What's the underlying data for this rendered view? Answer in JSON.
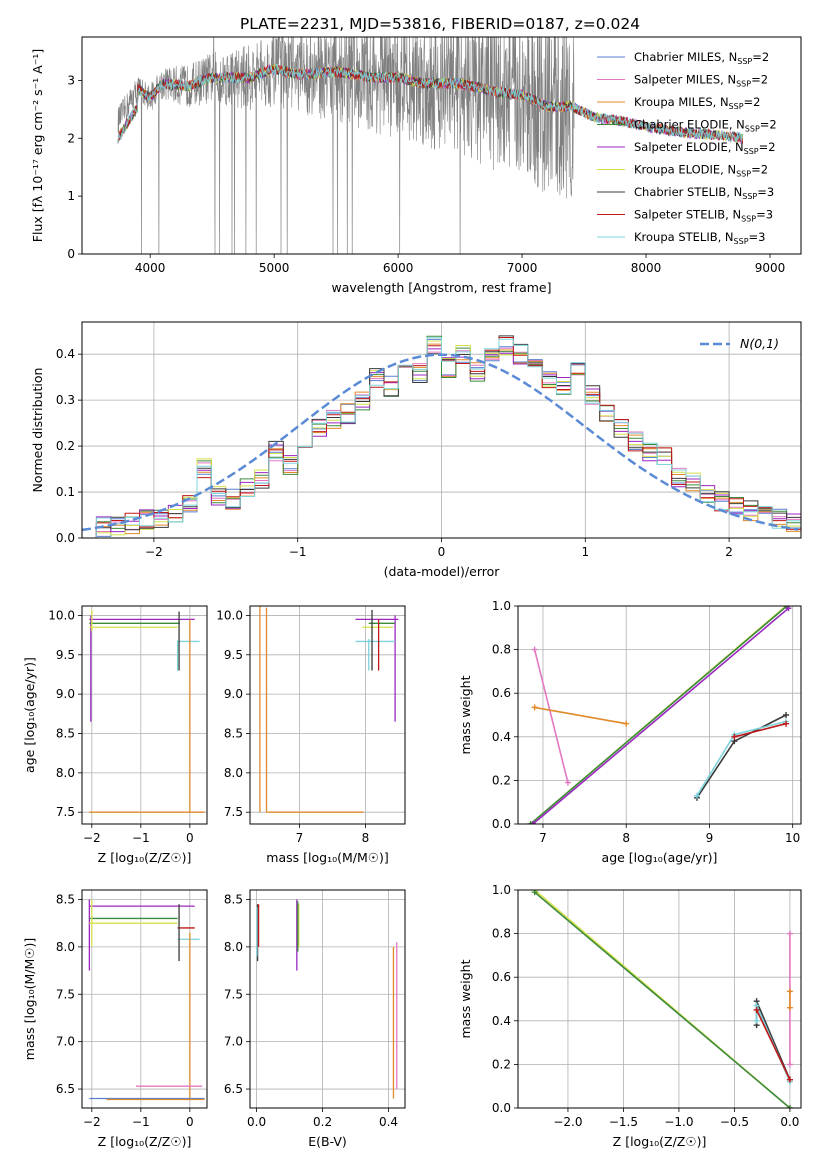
{
  "figure": {
    "title": "PLATE=2231, MJD=53816, FIBERID=0187, z=0.024"
  },
  "legend_entries": [
    {
      "name": "Chabrier MILES, N_SSP=2",
      "color": "#5a7fd1"
    },
    {
      "name": "Salpeter MILES, N_SSP=2",
      "color": "#e377c2"
    },
    {
      "name": "Kroupa MILES, N_SSP=2",
      "color": "#e08a2a"
    },
    {
      "name": "Chabrier ELODIE, N_SSP=2",
      "color": "#3c8a3c"
    },
    {
      "name": "Salpeter ELODIE, N_SSP=2",
      "color": "#9b27c0"
    },
    {
      "name": "Kroupa ELODIE, N_SSP=2",
      "color": "#d4e04a"
    },
    {
      "name": "Chabrier STELIB, N_SSP=3",
      "color": "#3a3a3a"
    },
    {
      "name": "Salpeter STELIB, N_SSP=3",
      "color": "#c01818"
    },
    {
      "name": "Kroupa STELIB, N_SSP=3",
      "color": "#7fd3dc"
    }
  ],
  "chart_data": [
    {
      "id": "spectrum",
      "type": "line",
      "xlabel": "wavelength [Angstrom, rest frame]",
      "ylabel": "Flux [f_λ 10^-17 erg cm^-2 s^-1 A^-1]",
      "xlim": [
        3450,
        9250
      ],
      "ylim": [
        0,
        3.75
      ],
      "xticks": [
        4000,
        5000,
        6000,
        7000,
        8000,
        9000
      ],
      "yticks": [
        0,
        1,
        2,
        3
      ],
      "grid": false,
      "legend": "top-right",
      "data_color": "#808080",
      "data_range": [
        3740,
        7420
      ],
      "model_range": [
        3740,
        8780
      ],
      "shape_x": [
        3740,
        3800,
        3900,
        4000,
        4100,
        4300,
        4500,
        4800,
        5000,
        5200,
        5500,
        5800,
        6000,
        6200,
        6500,
        6800,
        7000,
        7200,
        7400,
        7600,
        7800,
        8000,
        8300,
        8600,
        8780
      ],
      "shape_y": [
        2.3,
        2.5,
        2.85,
        2.7,
        2.95,
        2.9,
        3.05,
        3.05,
        3.2,
        3.1,
        3.15,
        3.05,
        3.05,
        2.95,
        2.95,
        2.8,
        2.75,
        2.55,
        2.55,
        2.35,
        2.3,
        2.2,
        2.1,
        2.05,
        2.0
      ]
    },
    {
      "id": "residuals",
      "type": "area",
      "xlabel": "(data-model)/error",
      "ylabel": "Normed distribution",
      "xlim": [
        -2.5,
        2.5
      ],
      "ylim": [
        0,
        0.47
      ],
      "xticks": [
        -2,
        -1,
        0,
        1,
        2
      ],
      "yticks": [
        0.0,
        0.1,
        0.2,
        0.3,
        0.4
      ],
      "grid": true,
      "legend_label": "N(0,1)",
      "legend": "top-right",
      "bin_edges_start": -2.5,
      "bin_width": 0.1,
      "base_hist": [
        0.022,
        0.025,
        0.028,
        0.032,
        0.04,
        0.045,
        0.055,
        0.07,
        0.15,
        0.09,
        0.085,
        0.11,
        0.13,
        0.19,
        0.16,
        0.2,
        0.24,
        0.26,
        0.27,
        0.3,
        0.35,
        0.33,
        0.38,
        0.36,
        0.42,
        0.37,
        0.4,
        0.36,
        0.4,
        0.42,
        0.4,
        0.39,
        0.34,
        0.33,
        0.36,
        0.31,
        0.27,
        0.24,
        0.21,
        0.19,
        0.18,
        0.13,
        0.12,
        0.1,
        0.08,
        0.07,
        0.06,
        0.05,
        0.04,
        0.035
      ]
    },
    {
      "id": "age_vs_Z",
      "type": "scatter",
      "xlabel": "Z [log10(Z/Z☉)]",
      "ylabel": "age [log10(age/yr)]",
      "xlim": [
        -2.2,
        0.35
      ],
      "ylim": [
        7.35,
        10.12
      ],
      "xticks": [
        -2,
        -1,
        0
      ],
      "yticks": [
        7.5,
        8.0,
        8.5,
        9.0,
        9.5,
        10.0
      ],
      "grid": true,
      "segments": [
        {
          "series": "Salpeter ELODIE",
          "x": [
            -2.05,
            0.1
          ],
          "y": [
            9.95,
            9.95
          ]
        },
        {
          "series": "Salpeter ELODIE",
          "x": [
            -2.02,
            -2.02
          ],
          "y": [
            8.65,
            10.0
          ]
        },
        {
          "series": "Chabrier ELODIE",
          "x": [
            -2.05,
            -0.2
          ],
          "y": [
            9.9,
            9.9
          ]
        },
        {
          "series": "Kroupa ELODIE",
          "x": [
            -2.05,
            -0.25
          ],
          "y": [
            9.85,
            9.85
          ]
        },
        {
          "series": "Kroupa ELODIE",
          "x": [
            -2.0,
            -2.0
          ],
          "y": [
            9.8,
            10.07
          ]
        },
        {
          "series": "Kroupa STELIB",
          "x": [
            -0.25,
            0.2
          ],
          "y": [
            9.67,
            9.67
          ]
        },
        {
          "series": "Chabrier STELIB",
          "x": [
            -0.22,
            -0.22
          ],
          "y": [
            9.3,
            10.05
          ]
        },
        {
          "series": "Kroupa MILES",
          "x": [
            0.0,
            0.0
          ],
          "y": [
            7.5,
            9.95
          ]
        },
        {
          "series": "Kroupa MILES",
          "x": [
            -2.05,
            0.3
          ],
          "y": [
            7.5,
            7.5
          ]
        },
        {
          "series": "Kroupa STELIB",
          "x": [
            -0.25,
            -0.25
          ],
          "y": [
            9.3,
            9.68
          ]
        }
      ]
    },
    {
      "id": "age_vs_mass",
      "type": "scatter",
      "xlabel": "mass [log10(M/M☉)]",
      "ylabel": "",
      "xlim": [
        6.25,
        8.6
      ],
      "ylim": [
        7.35,
        10.12
      ],
      "xticks": [
        7,
        8
      ],
      "yticks": [
        7.5,
        8.0,
        8.5,
        9.0,
        9.5,
        10.0
      ],
      "grid": true,
      "segments": [
        {
          "series": "Kroupa MILES",
          "x": [
            6.4,
            6.4
          ],
          "y": [
            7.5,
            10.15
          ]
        },
        {
          "series": "Kroupa MILES",
          "x": [
            6.5,
            6.5
          ],
          "y": [
            7.5,
            10.1
          ]
        },
        {
          "series": "Kroupa MILES",
          "x": [
            6.5,
            7.97
          ],
          "y": [
            7.5,
            7.5
          ]
        },
        {
          "series": "Salpeter ELODIE",
          "x": [
            7.85,
            8.5
          ],
          "y": [
            9.95,
            9.95
          ]
        },
        {
          "series": "Salpeter ELODIE",
          "x": [
            8.45,
            8.45
          ],
          "y": [
            8.65,
            10.0
          ]
        },
        {
          "series": "Chabrier ELODIE",
          "x": [
            8.05,
            8.45
          ],
          "y": [
            9.9,
            9.9
          ]
        },
        {
          "series": "Kroupa ELODIE",
          "x": [
            7.95,
            8.42
          ],
          "y": [
            9.85,
            9.85
          ]
        },
        {
          "series": "Kroupa STELIB",
          "x": [
            7.85,
            8.45
          ],
          "y": [
            9.67,
            9.67
          ]
        },
        {
          "series": "Chabrier STELIB",
          "x": [
            8.1,
            8.1
          ],
          "y": [
            9.3,
            10.07
          ]
        },
        {
          "series": "Salpeter STELIB",
          "x": [
            8.2,
            8.2
          ],
          "y": [
            9.3,
            9.95
          ]
        },
        {
          "series": "Kroupa STELIB",
          "x": [
            8.05,
            8.05
          ],
          "y": [
            9.3,
            9.7
          ]
        }
      ]
    },
    {
      "id": "weight_vs_age",
      "type": "line",
      "xlabel": "age [log10(age/yr)]",
      "ylabel": "mass weight",
      "xlim": [
        6.7,
        10.1
      ],
      "ylim": [
        0,
        1.0
      ],
      "xticks": [
        7,
        8,
        9,
        10
      ],
      "yticks": [
        0.0,
        0.2,
        0.4,
        0.6,
        0.8,
        1.0
      ],
      "grid": true,
      "lines": [
        {
          "series": "Kroupa ELODIE",
          "x": [
            6.85,
            9.95
          ],
          "y": [
            0.0,
            1.01
          ]
        },
        {
          "series": "Chabrier ELODIE",
          "x": [
            6.85,
            9.93
          ],
          "y": [
            0.0,
            1.0
          ]
        },
        {
          "series": "Salpeter ELODIE",
          "x": [
            6.88,
            9.95
          ],
          "y": [
            0.0,
            0.99
          ]
        },
        {
          "series": "Salpeter MILES",
          "x": [
            6.9,
            7.3
          ],
          "y": [
            0.8,
            0.19
          ]
        },
        {
          "series": "Kroupa MILES",
          "x": [
            6.9,
            8.0
          ],
          "y": [
            0.535,
            0.46
          ]
        },
        {
          "series": "Chabrier STELIB",
          "x": [
            8.85,
            9.3,
            9.92
          ],
          "y": [
            0.12,
            0.38,
            0.5
          ]
        },
        {
          "series": "Kroupa STELIB",
          "x": [
            8.85,
            9.3,
            9.92
          ],
          "y": [
            0.13,
            0.41,
            0.47
          ]
        },
        {
          "series": "Salpeter STELIB",
          "x": [
            9.3,
            9.92
          ],
          "y": [
            0.4,
            0.46
          ]
        }
      ]
    },
    {
      "id": "mass_vs_Z",
      "type": "scatter",
      "xlabel": "Z [log10(Z/Z☉)]",
      "ylabel": "mass [log10(M/M☉)]",
      "xlim": [
        -2.2,
        0.35
      ],
      "ylim": [
        6.3,
        8.6
      ],
      "xticks": [
        -2,
        -1,
        0
      ],
      "yticks": [
        6.5,
        7.0,
        7.5,
        8.0,
        8.5
      ],
      "grid": true,
      "segments": [
        {
          "series": "Salpeter ELODIE",
          "x": [
            -2.05,
            0.1
          ],
          "y": [
            8.43,
            8.43
          ]
        },
        {
          "series": "Salpeter ELODIE",
          "x": [
            -2.05,
            -2.05
          ],
          "y": [
            7.75,
            8.5
          ]
        },
        {
          "series": "Chabrier ELODIE",
          "x": [
            -2.05,
            -0.25
          ],
          "y": [
            8.3,
            8.3
          ]
        },
        {
          "series": "Kroupa ELODIE",
          "x": [
            -2.05,
            -0.25
          ],
          "y": [
            8.25,
            8.25
          ]
        },
        {
          "series": "Kroupa ELODIE",
          "x": [
            -2.0,
            -2.0
          ],
          "y": [
            8.0,
            8.5
          ]
        },
        {
          "series": "Salpeter STELIB",
          "x": [
            -0.25,
            0.1
          ],
          "y": [
            8.2,
            8.2
          ]
        },
        {
          "series": "Kroupa STELIB",
          "x": [
            -0.25,
            0.2
          ],
          "y": [
            8.08,
            8.08
          ]
        },
        {
          "series": "Chabrier STELIB",
          "x": [
            -0.22,
            -0.22
          ],
          "y": [
            7.85,
            8.45
          ]
        },
        {
          "series": "Kroupa MILES",
          "x": [
            0.0,
            0.0
          ],
          "y": [
            6.4,
            8.15
          ]
        },
        {
          "series": "Salpeter MILES",
          "x": [
            -1.1,
            0.25
          ],
          "y": [
            6.53,
            6.53
          ]
        },
        {
          "series": "Chabrier MILES",
          "x": [
            -2.05,
            0.3
          ],
          "y": [
            6.4,
            6.4
          ]
        },
        {
          "series": "Kroupa MILES",
          "x": [
            -1.7,
            0.3
          ],
          "y": [
            6.39,
            6.39
          ]
        }
      ]
    },
    {
      "id": "mass_vs_ebv",
      "type": "scatter",
      "xlabel": "E(B-V)",
      "ylabel": "",
      "xlim": [
        -0.02,
        0.45
      ],
      "ylim": [
        6.3,
        8.6
      ],
      "xticks": [
        0.0,
        0.2,
        0.4
      ],
      "yticks": [
        6.5,
        7.0,
        7.5,
        8.0,
        8.5
      ],
      "grid": true,
      "segments": [
        {
          "series": "Chabrier STELIB",
          "x": [
            0.003,
            0.003
          ],
          "y": [
            7.85,
            8.45
          ]
        },
        {
          "series": "Salpeter STELIB",
          "x": [
            0.006,
            0.006
          ],
          "y": [
            8.0,
            8.45
          ]
        },
        {
          "series": "Kroupa STELIB",
          "x": [
            0.001,
            0.001
          ],
          "y": [
            7.9,
            8.42
          ]
        },
        {
          "series": "Salpeter ELODIE",
          "x": [
            0.122,
            0.122
          ],
          "y": [
            7.75,
            8.5
          ]
        },
        {
          "series": "Kroupa ELODIE",
          "x": [
            0.128,
            0.128
          ],
          "y": [
            8.0,
            8.45
          ]
        },
        {
          "series": "Chabrier ELODIE",
          "x": [
            0.125,
            0.125
          ],
          "y": [
            7.95,
            8.48
          ]
        },
        {
          "series": "Kroupa MILES",
          "x": [
            0.415,
            0.415
          ],
          "y": [
            6.4,
            8.0
          ]
        },
        {
          "series": "Salpeter MILES",
          "x": [
            0.425,
            0.425
          ],
          "y": [
            6.5,
            8.05
          ]
        }
      ]
    },
    {
      "id": "weight_vs_Z",
      "type": "line",
      "xlabel": "Z [log10(Z/Z☉)]",
      "ylabel": "mass weight",
      "xlim": [
        -2.45,
        0.1
      ],
      "ylim": [
        0,
        1.0
      ],
      "xticks": [
        -2.0,
        -1.5,
        -1.0,
        -0.5,
        0.0
      ],
      "yticks": [
        0.0,
        0.2,
        0.4,
        0.6,
        0.8,
        1.0
      ],
      "grid": true,
      "lines": [
        {
          "series": "Kroupa ELODIE",
          "x": [
            -2.3,
            0.0
          ],
          "y": [
            1.0,
            0.0
          ]
        },
        {
          "series": "Chabrier ELODIE",
          "x": [
            -2.3,
            0.0
          ],
          "y": [
            0.99,
            0.0
          ]
        },
        {
          "series": "Chabrier STELIB",
          "x": [
            -0.3,
            -0.3,
            0.0
          ],
          "y": [
            0.38,
            0.49,
            0.13
          ]
        },
        {
          "series": "Kroupa STELIB",
          "x": [
            -0.3,
            -0.3,
            0.0
          ],
          "y": [
            0.4,
            0.47,
            0.12
          ]
        },
        {
          "series": "Salpeter STELIB",
          "x": [
            -0.3,
            0.0
          ],
          "y": [
            0.45,
            0.13
          ]
        },
        {
          "series": "Salpeter MILES",
          "x": [
            0.0,
            0.0
          ],
          "y": [
            0.2,
            0.8
          ]
        },
        {
          "series": "Kroupa MILES",
          "x": [
            0.0,
            0.0
          ],
          "y": [
            0.46,
            0.535
          ]
        }
      ]
    }
  ]
}
